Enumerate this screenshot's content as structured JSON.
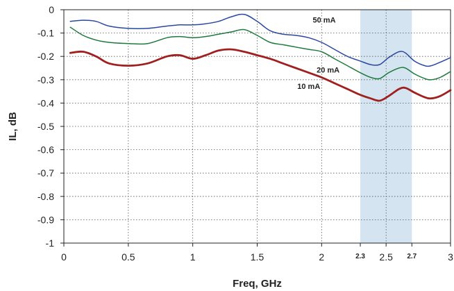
{
  "chart_data": {
    "type": "line",
    "xlabel": "Freq, GHz",
    "ylabel": "IL, dB",
    "xlim": [
      0,
      3
    ],
    "ylim": [
      -1,
      0
    ],
    "grid": true,
    "x_ticks": [
      "0",
      "0.5",
      "1",
      "1.5",
      "2",
      "2.5",
      "3"
    ],
    "x_ticks_extra": [
      "2.3",
      "2.7"
    ],
    "y_ticks": [
      "0",
      "-0.1",
      "-0.2",
      "-0.3",
      "-0.4",
      "-0.5",
      "-0.6",
      "-0.7",
      "-0.8",
      "-0.9",
      "-1"
    ],
    "highlight_band": {
      "x_from": 2.3,
      "x_to": 2.7,
      "color": "#d4e5f1"
    },
    "series": [
      {
        "name": "50 mA",
        "color": "#2a47a0",
        "x": [
          0.05,
          0.15,
          0.25,
          0.35,
          0.5,
          0.65,
          0.8,
          0.9,
          1.0,
          1.1,
          1.2,
          1.3,
          1.4,
          1.5,
          1.6,
          1.7,
          1.8,
          1.9,
          2.0,
          2.1,
          2.2,
          2.3,
          2.38,
          2.45,
          2.52,
          2.6,
          2.65,
          2.72,
          2.8,
          2.85,
          2.92,
          3.0
        ],
        "y": [
          -0.05,
          -0.045,
          -0.05,
          -0.07,
          -0.08,
          -0.08,
          -0.07,
          -0.065,
          -0.065,
          -0.06,
          -0.05,
          -0.03,
          -0.02,
          -0.05,
          -0.09,
          -0.105,
          -0.11,
          -0.12,
          -0.14,
          -0.17,
          -0.2,
          -0.22,
          -0.235,
          -0.235,
          -0.205,
          -0.18,
          -0.185,
          -0.22,
          -0.24,
          -0.24,
          -0.225,
          -0.205
        ]
      },
      {
        "name": "20 mA",
        "color": "#1e7a3c",
        "x": [
          0.05,
          0.15,
          0.25,
          0.35,
          0.5,
          0.65,
          0.8,
          0.9,
          1.0,
          1.1,
          1.2,
          1.3,
          1.4,
          1.5,
          1.6,
          1.7,
          1.8,
          1.9,
          2.0,
          2.1,
          2.2,
          2.3,
          2.38,
          2.45,
          2.52,
          2.6,
          2.65,
          2.72,
          2.8,
          2.85,
          2.92,
          3.0
        ],
        "y": [
          -0.075,
          -0.11,
          -0.13,
          -0.14,
          -0.145,
          -0.145,
          -0.12,
          -0.115,
          -0.12,
          -0.115,
          -0.105,
          -0.095,
          -0.085,
          -0.11,
          -0.14,
          -0.15,
          -0.16,
          -0.17,
          -0.18,
          -0.21,
          -0.24,
          -0.27,
          -0.29,
          -0.295,
          -0.27,
          -0.25,
          -0.25,
          -0.275,
          -0.295,
          -0.3,
          -0.29,
          -0.265
        ]
      },
      {
        "name": "10 mA",
        "color": "#a02020",
        "x": [
          0.05,
          0.15,
          0.25,
          0.35,
          0.5,
          0.65,
          0.8,
          0.9,
          1.0,
          1.1,
          1.2,
          1.3,
          1.4,
          1.5,
          1.6,
          1.7,
          1.8,
          1.9,
          2.0,
          2.1,
          2.2,
          2.3,
          2.38,
          2.45,
          2.52,
          2.6,
          2.65,
          2.72,
          2.8,
          2.85,
          2.92,
          3.0
        ],
        "y": [
          -0.185,
          -0.18,
          -0.2,
          -0.23,
          -0.24,
          -0.23,
          -0.2,
          -0.195,
          -0.21,
          -0.195,
          -0.175,
          -0.17,
          -0.18,
          -0.195,
          -0.21,
          -0.23,
          -0.25,
          -0.27,
          -0.29,
          -0.315,
          -0.34,
          -0.365,
          -0.38,
          -0.39,
          -0.37,
          -0.34,
          -0.335,
          -0.355,
          -0.375,
          -0.38,
          -0.37,
          -0.345
        ]
      }
    ]
  }
}
